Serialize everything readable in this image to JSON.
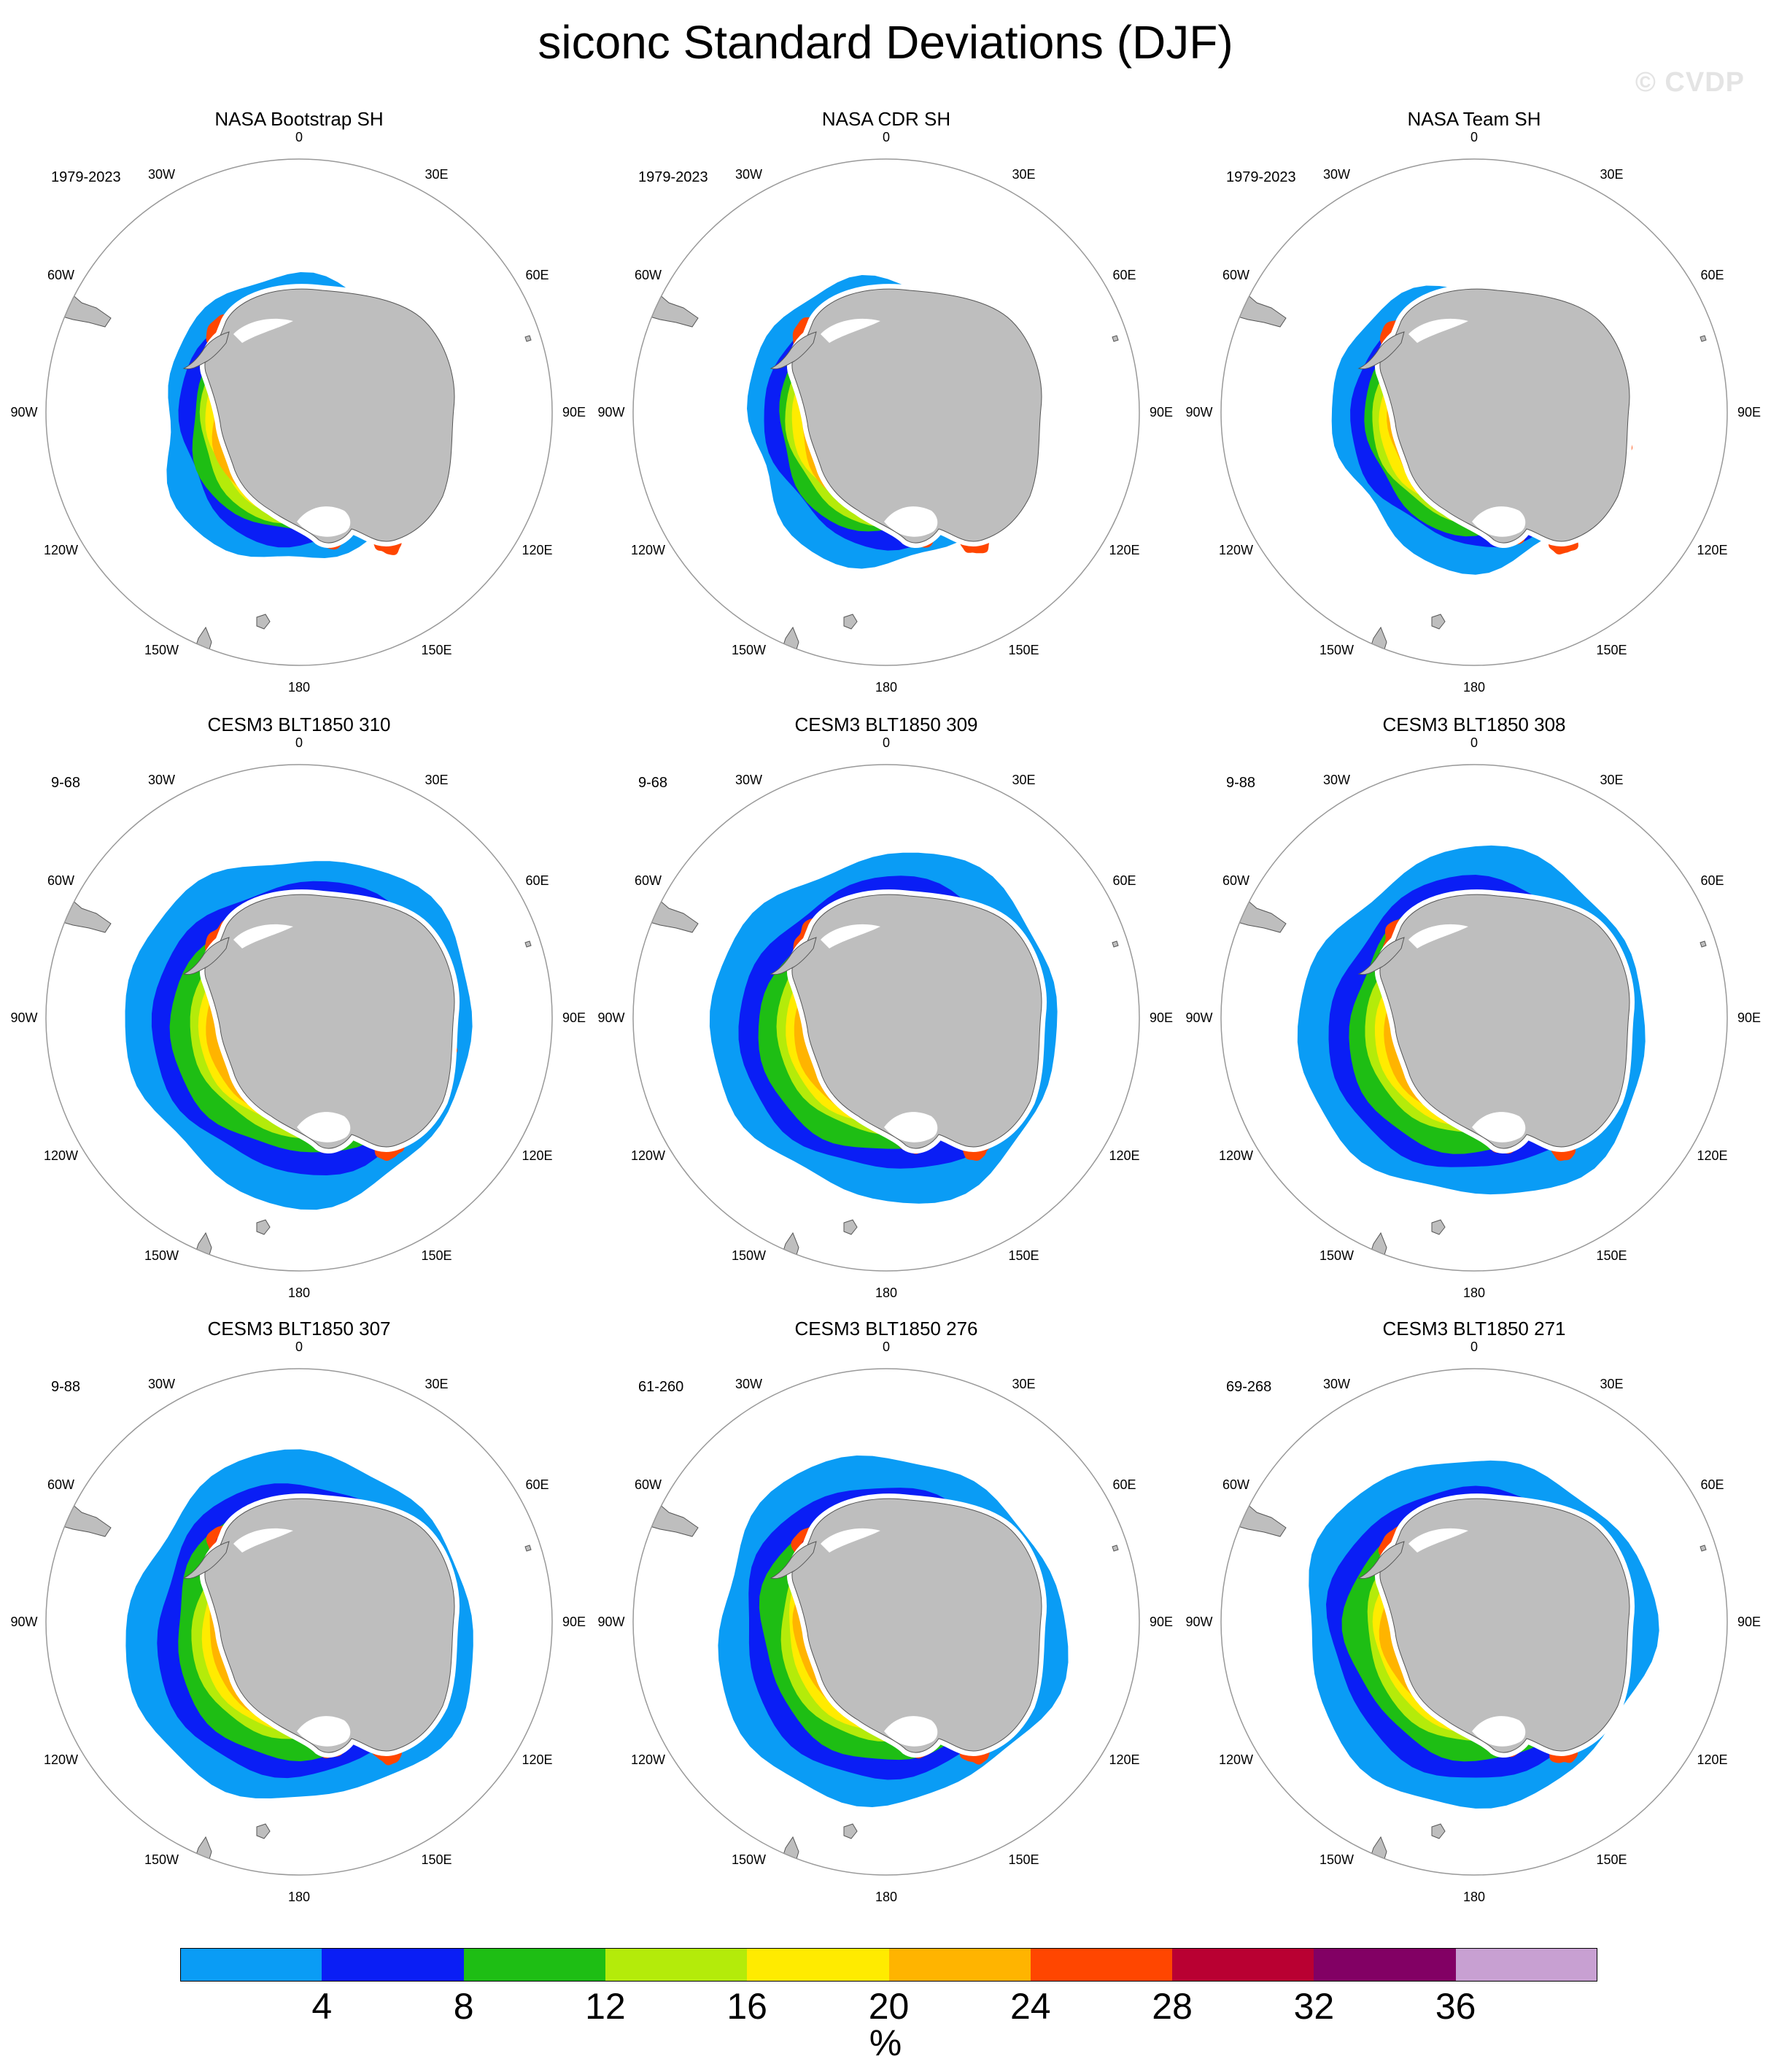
{
  "title": "siconc Standard Deviations (DJF)",
  "watermark": "© CVDP",
  "panels": [
    {
      "title": "NASA Bootstrap SH",
      "period": "1979-2023",
      "style": "obs"
    },
    {
      "title": "NASA CDR SH",
      "period": "1979-2023",
      "style": "obs"
    },
    {
      "title": "NASA Team SH",
      "period": "1979-2023",
      "style": "obs"
    },
    {
      "title": "CESM3 BLT1850 310",
      "period": "9-68",
      "style": "model"
    },
    {
      "title": "CESM3 BLT1850 309",
      "period": "9-68",
      "style": "model"
    },
    {
      "title": "CESM3 BLT1850 308",
      "period": "9-88",
      "style": "model"
    },
    {
      "title": "CESM3 BLT1850 307",
      "period": "9-88",
      "style": "model"
    },
    {
      "title": "CESM3 BLT1850 276",
      "period": "61-260",
      "style": "model"
    },
    {
      "title": "CESM3 BLT1850 271",
      "period": "69-268",
      "style": "model"
    }
  ],
  "lon_labels": [
    {
      "text": "0",
      "angle": 0
    },
    {
      "text": "30E",
      "angle": 30
    },
    {
      "text": "60E",
      "angle": 60
    },
    {
      "text": "90E",
      "angle": 90
    },
    {
      "text": "120E",
      "angle": 120
    },
    {
      "text": "150E",
      "angle": 150
    },
    {
      "text": "180",
      "angle": 180
    },
    {
      "text": "150W",
      "angle": 210
    },
    {
      "text": "120W",
      "angle": 240
    },
    {
      "text": "90W",
      "angle": 270
    },
    {
      "text": "60W",
      "angle": 300
    },
    {
      "text": "30W",
      "angle": 330
    }
  ],
  "colorbar": {
    "colors": [
      "#0a9cf5",
      "#0a1ef5",
      "#1ebe14",
      "#b4eb0a",
      "#ffeb00",
      "#ffb400",
      "#ff4600",
      "#b90032",
      "#820064",
      "#c8a0d2"
    ],
    "labels": [
      "4",
      "8",
      "12",
      "16",
      "20",
      "24",
      "28",
      "32",
      "36"
    ],
    "unit": "%"
  },
  "colors": {
    "land": "#bebebe",
    "coast": "#555555",
    "frame": "#999999"
  }
}
